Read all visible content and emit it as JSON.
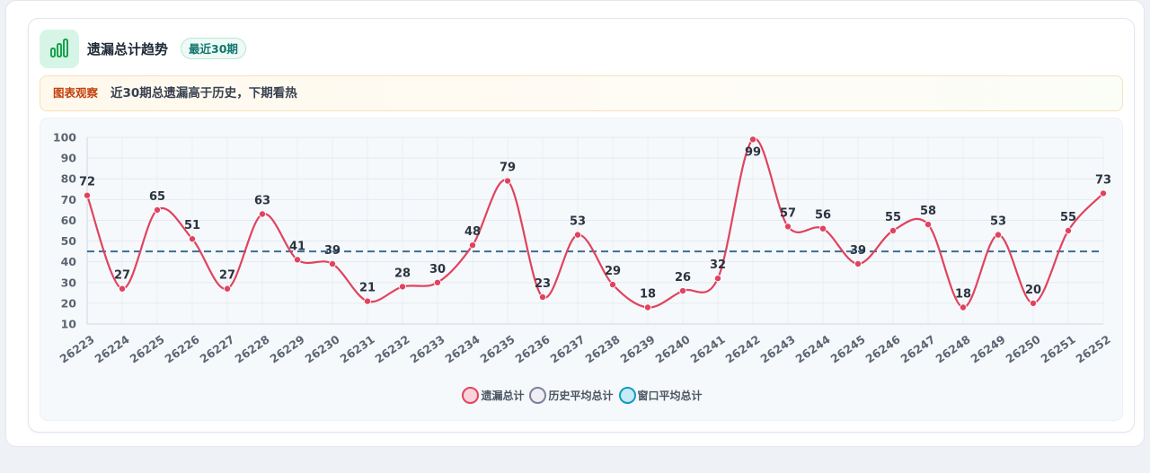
{
  "header": {
    "title": "遗漏总计趋势",
    "badge": "最近30期"
  },
  "note": {
    "tag": "图表观察",
    "text": "近30期总遗漏高于历史，下期看热"
  },
  "colors": {
    "series": "#e0435f",
    "series_fill": "#fbd3da",
    "history": "#7c7f9a",
    "history_fill": "#eeeef4",
    "window": "#0e9bc4",
    "window_fill": "#c6ebf6",
    "avg_line": "#3b6d93"
  },
  "legend": [
    {
      "label": "遗漏总计",
      "color": "#e0435f",
      "fill": "#fbd3da"
    },
    {
      "label": "历史平均总计",
      "color": "#7c7f9a",
      "fill": "#eeeef4"
    },
    {
      "label": "窗口平均总计",
      "color": "#0e9bc4",
      "fill": "#c6ebf6"
    }
  ],
  "chart_data": {
    "type": "line",
    "x": [
      "26223",
      "26224",
      "26225",
      "26226",
      "26227",
      "26228",
      "26229",
      "26230",
      "26231",
      "26232",
      "26233",
      "26234",
      "26235",
      "26236",
      "26237",
      "26238",
      "26239",
      "26240",
      "26241",
      "26242",
      "26243",
      "26244",
      "26245",
      "26246",
      "26247",
      "26248",
      "26249",
      "26250",
      "26251",
      "26252"
    ],
    "series": [
      {
        "name": "遗漏总计",
        "values": [
          72,
          27,
          65,
          51,
          27,
          63,
          41,
          39,
          21,
          28,
          30,
          48,
          79,
          23,
          53,
          29,
          18,
          26,
          32,
          99,
          57,
          56,
          39,
          55,
          58,
          18,
          53,
          20,
          55,
          73
        ]
      }
    ],
    "reference_lines": [
      {
        "name": "窗口平均总计",
        "value": 45,
        "style": "dashed"
      }
    ],
    "yticks": [
      10,
      20,
      30,
      40,
      50,
      60,
      70,
      80,
      90,
      100
    ],
    "ylim": [
      10,
      100
    ],
    "grid": true,
    "legend_position": "bottom",
    "data_labels": true
  }
}
